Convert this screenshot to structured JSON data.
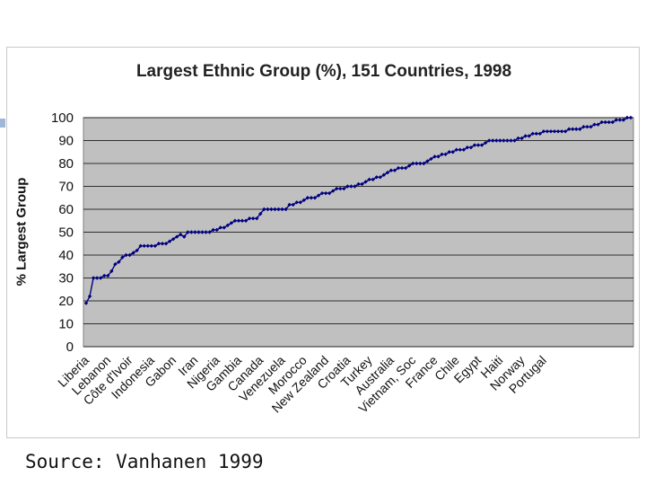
{
  "source_text": "Source: Vanhanen 1999",
  "chart_data": {
    "type": "line",
    "title": "Largest Ethnic Group (%), 151 Countries, 1998",
    "ylabel": "% Largest Group",
    "xlabel": "",
    "ylim": [
      0,
      100
    ],
    "yticks": [
      0,
      10,
      20,
      30,
      40,
      50,
      60,
      70,
      80,
      90,
      100
    ],
    "grid": true,
    "legend": "none",
    "colors": {
      "line": "#00007f",
      "plot_bg": "#c0c0c0",
      "grid": "#000000"
    },
    "x_tick_labels": [
      {
        "i": 0,
        "label": "Liberia"
      },
      {
        "i": 6,
        "label": "Lebanon"
      },
      {
        "i": 12,
        "label": "Côte d'Ivoir"
      },
      {
        "i": 18,
        "label": "Indonesia"
      },
      {
        "i": 24,
        "label": "Gabon"
      },
      {
        "i": 30,
        "label": "Iran"
      },
      {
        "i": 36,
        "label": "Nigeria"
      },
      {
        "i": 42,
        "label": "Gambia"
      },
      {
        "i": 48,
        "label": "Canada"
      },
      {
        "i": 54,
        "label": "Venezuela"
      },
      {
        "i": 60,
        "label": "Morocco"
      },
      {
        "i": 66,
        "label": "New Zealand"
      },
      {
        "i": 72,
        "label": "Croatia"
      },
      {
        "i": 78,
        "label": "Turkey"
      },
      {
        "i": 84,
        "label": "Australia"
      },
      {
        "i": 90,
        "label": "Vietnam, Soc"
      },
      {
        "i": 96,
        "label": "France"
      },
      {
        "i": 102,
        "label": "Chile"
      },
      {
        "i": 108,
        "label": "Egypt"
      },
      {
        "i": 114,
        "label": "Haiti"
      },
      {
        "i": 120,
        "label": "Norway"
      },
      {
        "i": 126,
        "label": "Portugal"
      }
    ],
    "values": [
      19,
      22,
      30,
      30,
      30,
      31,
      31,
      33,
      36,
      37,
      39,
      40,
      40,
      41,
      42,
      44,
      44,
      44,
      44,
      44,
      45,
      45,
      45,
      46,
      47,
      48,
      49,
      48,
      50,
      50,
      50,
      50,
      50,
      50,
      50,
      51,
      51,
      52,
      52,
      53,
      54,
      55,
      55,
      55,
      55,
      56,
      56,
      56,
      58,
      60,
      60,
      60,
      60,
      60,
      60,
      60,
      62,
      62,
      63,
      63,
      64,
      65,
      65,
      65,
      66,
      67,
      67,
      67,
      68,
      69,
      69,
      69,
      70,
      70,
      70,
      71,
      71,
      72,
      73,
      73,
      74,
      74,
      75,
      76,
      77,
      77,
      78,
      78,
      78,
      79,
      80,
      80,
      80,
      80,
      81,
      82,
      83,
      83,
      84,
      84,
      85,
      85,
      86,
      86,
      86,
      87,
      87,
      88,
      88,
      88,
      89,
      90,
      90,
      90,
      90,
      90,
      90,
      90,
      90,
      91,
      91,
      92,
      92,
      93,
      93,
      93,
      94,
      94,
      94,
      94,
      94,
      94,
      94,
      95,
      95,
      95,
      95,
      96,
      96,
      96,
      97,
      97,
      98,
      98,
      98,
      98,
      99,
      99,
      99,
      100,
      100
    ]
  }
}
